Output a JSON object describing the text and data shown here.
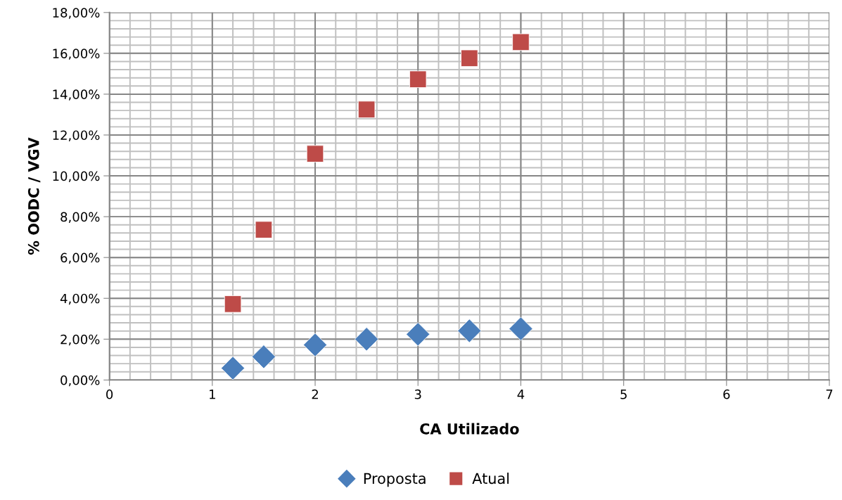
{
  "chart_data": {
    "type": "scatter",
    "xlabel": "CA Utilizado",
    "ylabel": "% OODC / VGV",
    "xlim": [
      0,
      7
    ],
    "xticks": [
      0,
      1,
      2,
      3,
      4,
      5,
      6,
      7
    ],
    "ylim": [
      0,
      18
    ],
    "yticks": [
      {
        "value": 0,
        "label": "0,00%"
      },
      {
        "value": 2,
        "label": "2,00%"
      },
      {
        "value": 4,
        "label": "4,00%"
      },
      {
        "value": 6,
        "label": "6,00%"
      },
      {
        "value": 8,
        "label": "8,00%"
      },
      {
        "value": 10,
        "label": "10,00%"
      },
      {
        "value": 12,
        "label": "12,00%"
      },
      {
        "value": 14,
        "label": "14,00%"
      },
      {
        "value": 16,
        "label": "16,00%"
      },
      {
        "value": 18,
        "label": "18,00%"
      }
    ],
    "x": [
      1.2,
      1.5,
      2,
      2.5,
      3,
      3.5,
      4
    ],
    "grid": true,
    "legend": "bottom",
    "series": [
      {
        "name": "Proposta",
        "color": "#4a7ebb",
        "marker": "diamond",
        "values": [
          0.58,
          1.14,
          1.72,
          2.0,
          2.24,
          2.41,
          2.51
        ]
      },
      {
        "name": "Atual",
        "color": "#be4b48",
        "marker": "square",
        "values": [
          3.72,
          7.36,
          11.08,
          13.25,
          14.73,
          15.76,
          16.55
        ]
      }
    ]
  }
}
